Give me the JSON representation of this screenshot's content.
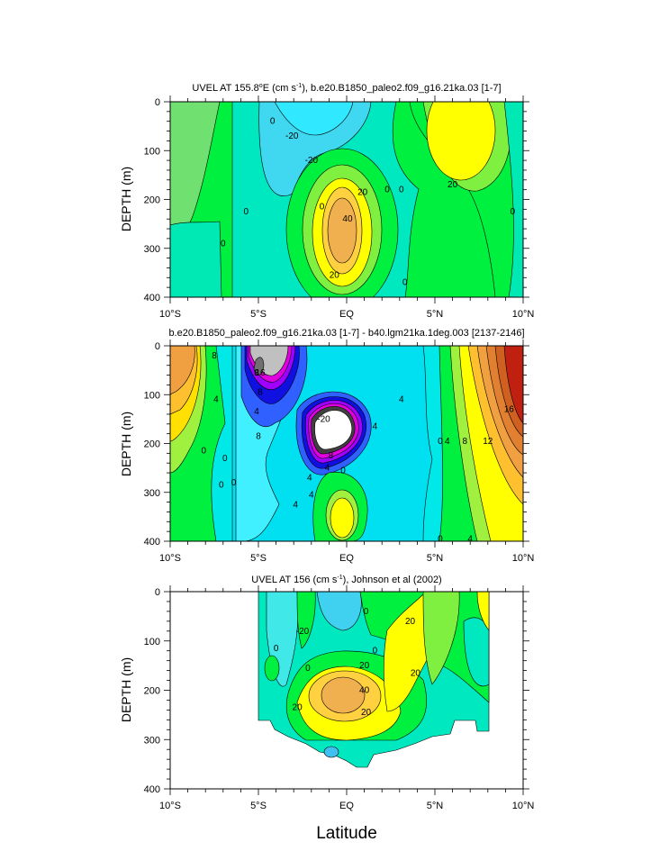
{
  "chart_data": [
    {
      "type": "heatmap",
      "title": "UVEL AT 155.8°E (cm s-1), b.e20.B1850_paleo2.f09_g16.21ka.03 [1-7]",
      "ylabel": "DEPTH (m)",
      "xlabel": "",
      "x_ticks": [
        "10°S",
        "5°S",
        "EQ",
        "5°N",
        "10°N"
      ],
      "y_ticks": [
        "0",
        "100",
        "200",
        "300",
        "400"
      ],
      "xlim": [
        -10,
        10
      ],
      "ylim": [
        400,
        0
      ],
      "contour_labels": [
        {
          "text": "0",
          "lat": -4.2,
          "depth": 40
        },
        {
          "text": "-20",
          "lat": -3.1,
          "depth": 70
        },
        {
          "text": "-20",
          "lat": -2.0,
          "depth": 120
        },
        {
          "text": "0",
          "lat": -5.7,
          "depth": 225
        },
        {
          "text": "0",
          "lat": -7.0,
          "depth": 290
        },
        {
          "text": "0",
          "lat": -1.4,
          "depth": 215
        },
        {
          "text": "20",
          "lat": 0.9,
          "depth": 185
        },
        {
          "text": "40",
          "lat": 0.05,
          "depth": 240
        },
        {
          "text": "20",
          "lat": -0.7,
          "depth": 355
        },
        {
          "text": "0",
          "lat": 2.3,
          "depth": 180
        },
        {
          "text": "0",
          "lat": 3.1,
          "depth": 180
        },
        {
          "text": "0",
          "lat": 3.3,
          "depth": 370
        },
        {
          "text": "20",
          "lat": 6.0,
          "depth": 170
        },
        {
          "text": "0",
          "lat": 9.4,
          "depth": 225
        }
      ]
    },
    {
      "type": "heatmap",
      "title": "b.e20.B1850_paleo2.f09_g16.21ka.03 [1-7] - b40.lgm21ka.1deg.003 [2137-2146]",
      "ylabel": "DEPTH (m)",
      "xlabel": "",
      "x_ticks": [
        "10°S",
        "5°S",
        "EQ",
        "5°N",
        "10°N"
      ],
      "y_ticks": [
        "0",
        "100",
        "200",
        "300",
        "400"
      ],
      "xlim": [
        -10,
        10
      ],
      "ylim": [
        400,
        0
      ],
      "contour_labels": [
        {
          "text": "8",
          "lat": -7.5,
          "depth": 20
        },
        {
          "text": "4",
          "lat": -7.4,
          "depth": 110
        },
        {
          "text": "0",
          "lat": -8.1,
          "depth": 215
        },
        {
          "text": "0",
          "lat": -7.1,
          "depth": 285
        },
        {
          "text": "0",
          "lat": -6.9,
          "depth": 230
        },
        {
          "text": "0",
          "lat": -6.4,
          "depth": 280
        },
        {
          "text": "4",
          "lat": -2.9,
          "depth": 325
        },
        {
          "text": "8",
          "lat": -5.1,
          "depth": 55
        },
        {
          "text": "16",
          "lat": -4.9,
          "depth": 55
        },
        {
          "text": "8",
          "lat": -4.9,
          "depth": 95
        },
        {
          "text": "4",
          "lat": -5.1,
          "depth": 135
        },
        {
          "text": "8",
          "lat": -5.0,
          "depth": 185
        },
        {
          "text": "-20",
          "lat": -1.3,
          "depth": 150
        },
        {
          "text": "8",
          "lat": -0.9,
          "depth": 225
        },
        {
          "text": "4",
          "lat": 1.6,
          "depth": 165
        },
        {
          "text": "4",
          "lat": -1.1,
          "depth": 250
        },
        {
          "text": "4",
          "lat": -2.1,
          "depth": 270
        },
        {
          "text": "4",
          "lat": -2.0,
          "depth": 305
        },
        {
          "text": "0",
          "lat": -0.2,
          "depth": 255
        },
        {
          "text": "4",
          "lat": 3.1,
          "depth": 110
        },
        {
          "text": "0",
          "lat": 5.3,
          "depth": 195
        },
        {
          "text": "4",
          "lat": 5.7,
          "depth": 195
        },
        {
          "text": "8",
          "lat": 6.7,
          "depth": 195
        },
        {
          "text": "12",
          "lat": 8.0,
          "depth": 195
        },
        {
          "text": "16",
          "lat": 9.2,
          "depth": 130
        },
        {
          "text": "0",
          "lat": 5.3,
          "depth": 395
        },
        {
          "text": "4",
          "lat": 7.0,
          "depth": 395
        }
      ]
    },
    {
      "type": "heatmap",
      "title": "UVEL AT 156 (cm s-1), Johnson et al (2002)",
      "ylabel": "DEPTH (m)",
      "xlabel": "Latitude",
      "x_ticks": [
        "10°S",
        "5°S",
        "EQ",
        "5°N",
        "10°N"
      ],
      "y_ticks": [
        "0",
        "100",
        "200",
        "300",
        "400"
      ],
      "xlim": [
        -10,
        10
      ],
      "ylim": [
        400,
        0
      ],
      "contour_labels": [
        {
          "text": "-20",
          "lat": -2.5,
          "depth": 80
        },
        {
          "text": "0",
          "lat": -4.0,
          "depth": 115
        },
        {
          "text": "0",
          "lat": -2.2,
          "depth": 155
        },
        {
          "text": "0",
          "lat": 1.1,
          "depth": 40
        },
        {
          "text": "20",
          "lat": 3.6,
          "depth": 60
        },
        {
          "text": "20",
          "lat": 3.9,
          "depth": 165
        },
        {
          "text": "0",
          "lat": 1.6,
          "depth": 120
        },
        {
          "text": "20",
          "lat": 1.0,
          "depth": 150
        },
        {
          "text": "40",
          "lat": 1.0,
          "depth": 200
        },
        {
          "text": "20",
          "lat": -2.8,
          "depth": 235
        },
        {
          "text": "20",
          "lat": 1.1,
          "depth": 245
        }
      ]
    }
  ]
}
